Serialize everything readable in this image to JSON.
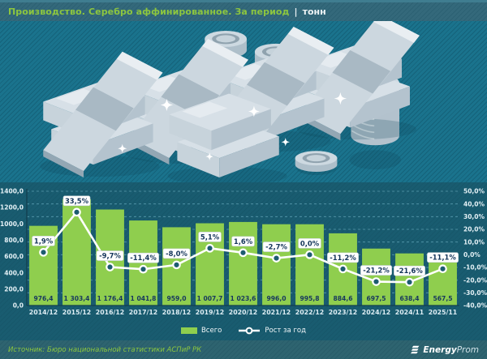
{
  "header": {
    "title": "Производство. Серебро аффинированное. За период",
    "separator": "|",
    "unit": "тонн"
  },
  "legend": {
    "bars": "Всего",
    "line": "Рост за год"
  },
  "footer": {
    "source": "Источник: Бюро национальной статистики АСПиР РК",
    "logo_bold": "Energy",
    "logo_light": "Prom"
  },
  "colors": {
    "bar_green": "#8fce4e",
    "title_green": "#8dc63f",
    "panel": "#195c70",
    "background": "#1a738d",
    "header_strip": "#34697b",
    "footer_strip": "#2e6470",
    "value_text": "#17375e",
    "line_white": "#ffffff",
    "marker_fill": "#1d5c70"
  },
  "chart_data": {
    "type": "bar",
    "title": "Производство. Серебро аффинированное. За период, тонн",
    "categories": [
      "2014/12",
      "2015/12",
      "2016/12",
      "2017/12",
      "2018/12",
      "2019/12",
      "2020/12",
      "2021/12",
      "2022/12",
      "2023/12",
      "2024/12",
      "2024/11",
      "2025/11"
    ],
    "series": [
      {
        "name": "Всего",
        "type": "bar",
        "axis": "left",
        "color": "#8fce4e",
        "values": [
          976.4,
          1303.4,
          1176.4,
          1041.8,
          959.0,
          1007.7,
          1023.6,
          996.0,
          995.8,
          884.6,
          697.5,
          638.4,
          567.5
        ],
        "labels": [
          "976,4",
          "1 303,4",
          "1 176,4",
          "1 041,8",
          "959,0",
          "1 007,7",
          "1 023,6",
          "996,0",
          "995,8",
          "884,6",
          "697,5",
          "638,4",
          "567,5"
        ]
      },
      {
        "name": "Рост за год",
        "type": "line",
        "axis": "right",
        "color": "#ffffff",
        "values": [
          1.9,
          33.5,
          -9.7,
          -11.4,
          -8.0,
          5.1,
          1.6,
          -2.7,
          0.0,
          -11.2,
          -21.2,
          -21.6,
          -11.1
        ],
        "labels": [
          "1,9%",
          "33,5%",
          "-9,7%",
          "-11,4%",
          "-8,0%",
          "5,1%",
          "1,6%",
          "-2,7%",
          "0,0%",
          "-11,2%",
          "-21,2%",
          "-21,6%",
          "-11,1%"
        ]
      }
    ],
    "left_axis": {
      "min": 0,
      "max": 1400,
      "ticks": [
        "1400,0",
        "1200,0",
        "1000,0",
        "800,0",
        "600,0",
        "400,0",
        "200,0",
        "0,0"
      ]
    },
    "right_axis": {
      "min": -40,
      "max": 50,
      "ticks": [
        "50,0%",
        "40,0%",
        "30,0%",
        "20,0%",
        "10,0%",
        "0,0%",
        "-10,0%",
        "-20,0%",
        "-30,0%",
        "-40,0%"
      ]
    },
    "grid": "dashed-horizontal",
    "legend_position": "bottom"
  }
}
